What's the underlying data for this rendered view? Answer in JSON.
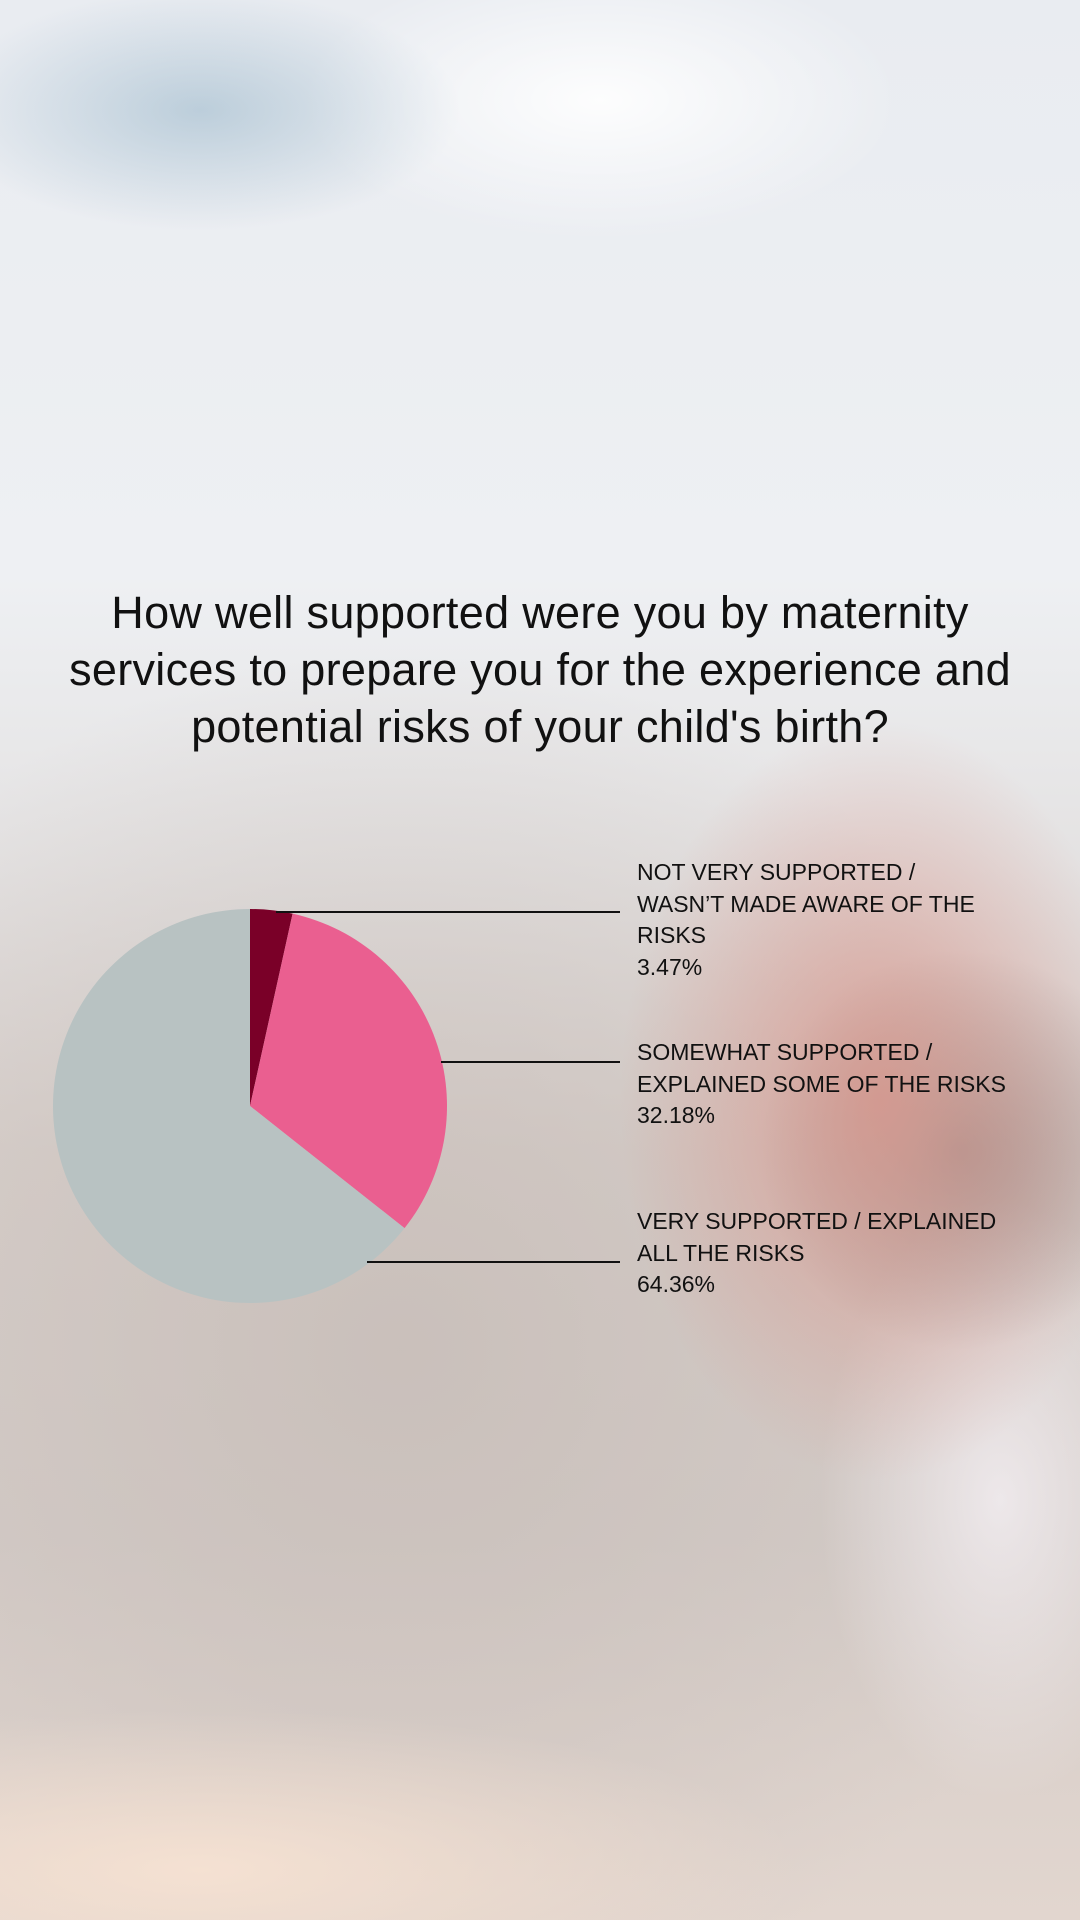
{
  "chart_data": {
    "type": "pie",
    "title": "How well supported were you by maternity services to prepare you for the experience and potential risks of your child's birth?",
    "slices": [
      {
        "label": "NOT VERY SUPPORTED / WASN’T MADE AWARE OF THE RISKS",
        "value": 3.47,
        "value_label": "3.47%",
        "color": "#7a0028"
      },
      {
        "label": "SOMEWHAT SUPPORTED / EXPLAINED SOME OF THE RISKS",
        "value": 32.18,
        "value_label": "32.18%",
        "color": "#ea5f90"
      },
      {
        "label": "VERY SUPPORTED / EXPLAINED ALL THE RISKS",
        "value": 64.36,
        "value_label": "64.36%",
        "color": "#b8c2c2"
      }
    ],
    "start_angle": "top",
    "direction": "clockwise",
    "legend": "right, with leader lines"
  }
}
